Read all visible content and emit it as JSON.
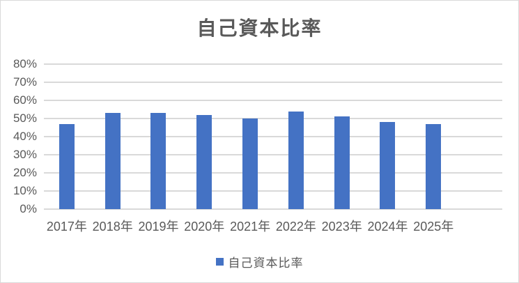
{
  "chart_data": {
    "type": "bar",
    "title": "自己資本比率",
    "categories": [
      "2017年",
      "2018年",
      "2019年",
      "2020年",
      "2021年",
      "2022年",
      "2023年",
      "2024年",
      "2025年"
    ],
    "series": [
      {
        "name": "自己資本比率",
        "values": [
          47,
          53,
          53,
          52,
          50,
          54,
          51,
          48,
          47
        ]
      }
    ],
    "unit": "%",
    "xlabel": "",
    "ylabel": "",
    "ylim": [
      0,
      80
    ],
    "yticks": [
      {
        "value": 80,
        "label": "80%"
      },
      {
        "value": 70,
        "label": "70%"
      },
      {
        "value": 60,
        "label": "60%"
      },
      {
        "value": 50,
        "label": "50%"
      },
      {
        "value": 40,
        "label": "40%"
      },
      {
        "value": 30,
        "label": "30%"
      },
      {
        "value": 20,
        "label": "20%"
      },
      {
        "value": 10,
        "label": "10%"
      },
      {
        "value": 0,
        "label": "0%"
      }
    ],
    "grid": true,
    "legend_position": "bottom",
    "empty_trailing_slots": 1,
    "colors": {
      "bar": "#4472C4",
      "gridline": "#D9D9D9",
      "axis_text": "#595959",
      "title_text": "#595959",
      "border": "#D9D9D9"
    }
  }
}
